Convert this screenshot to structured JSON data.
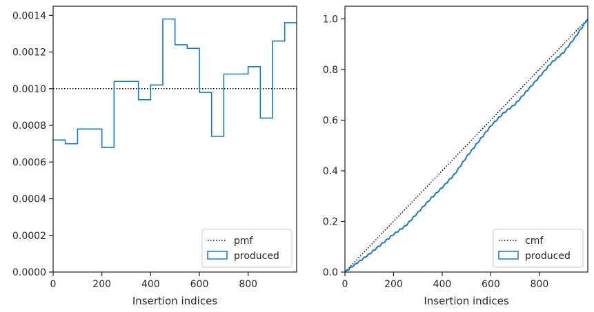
{
  "colors": {
    "series": "#1f77b4",
    "reference": "#000000",
    "axis": "#262626",
    "legend_border": "#cccccc"
  },
  "chart_data": [
    {
      "type": "histogram-step",
      "xlabel": "Insertion indices",
      "ylabel": "",
      "xlim": [
        0,
        999
      ],
      "ylim": [
        0,
        0.00145
      ],
      "xticks": [
        0,
        200,
        400,
        600,
        800
      ],
      "xtick_labels": [
        "0",
        "200",
        "400",
        "600",
        "800"
      ],
      "yticks": [
        0,
        0.0002,
        0.0004,
        0.0006,
        0.0008,
        0.001,
        0.0012,
        0.0014
      ],
      "ytick_labels": [
        "0.0000",
        "0.0002",
        "0.0004",
        "0.0006",
        "0.0008",
        "0.0010",
        "0.0012",
        "0.0014"
      ],
      "legend_position": "lower-right",
      "series": [
        {
          "name": "pmf",
          "style": "dotted",
          "x": [
            0,
            999
          ],
          "y": [
            0.001,
            0.001
          ]
        },
        {
          "name": "produced",
          "style": "step",
          "bin_edges": [
            0,
            50,
            100,
            150,
            200,
            250,
            300,
            350,
            400,
            450,
            500,
            550,
            600,
            650,
            700,
            750,
            800,
            850,
            900,
            950,
            999
          ],
          "values": [
            0.00072,
            0.0007,
            0.00078,
            0.00078,
            0.00068,
            0.00104,
            0.00104,
            0.00094,
            0.00102,
            0.00138,
            0.00124,
            0.00122,
            0.00098,
            0.00074,
            0.00108,
            0.00108,
            0.00112,
            0.00084,
            0.00126,
            0.00136
          ]
        }
      ]
    },
    {
      "type": "line",
      "xlabel": "Insertion indices",
      "ylabel": "",
      "xlim": [
        0,
        999
      ],
      "ylim": [
        0,
        1.05
      ],
      "xticks": [
        0,
        200,
        400,
        600,
        800
      ],
      "xtick_labels": [
        "0",
        "200",
        "400",
        "600",
        "800"
      ],
      "yticks": [
        0,
        0.2,
        0.4,
        0.6,
        0.8,
        1.0
      ],
      "ytick_labels": [
        "0.0",
        "0.2",
        "0.4",
        "0.6",
        "0.8",
        "1.0"
      ],
      "legend_position": "lower-right",
      "series": [
        {
          "name": "cmf",
          "style": "dotted",
          "x": [
            0,
            999
          ],
          "y": [
            0,
            1
          ]
        },
        {
          "name": "produced",
          "style": "line",
          "x": [
            0,
            50,
            100,
            150,
            200,
            250,
            300,
            350,
            400,
            450,
            500,
            550,
            600,
            650,
            700,
            750,
            800,
            850,
            900,
            950,
            999
          ],
          "y": [
            0,
            0.036,
            0.071,
            0.11,
            0.149,
            0.183,
            0.235,
            0.287,
            0.334,
            0.385,
            0.454,
            0.516,
            0.577,
            0.626,
            0.663,
            0.717,
            0.771,
            0.827,
            0.868,
            0.931,
            1.0
          ]
        }
      ]
    }
  ]
}
